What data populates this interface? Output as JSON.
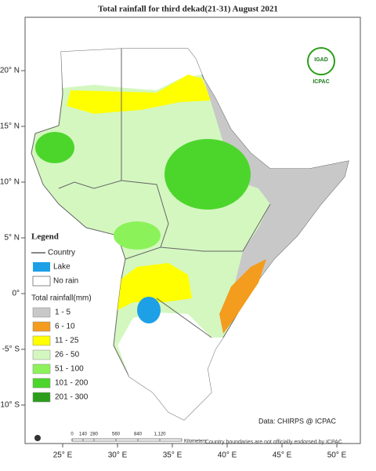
{
  "header": {
    "title": "Total rainfall for third  dekad(21-31)  August 2021"
  },
  "logo": {
    "name": "IGAD",
    "org": "ICPAC"
  },
  "longitudes": [
    "25° E",
    "30° E",
    "35° E",
    "40° E",
    "45° E",
    "50° E"
  ],
  "latitudes": [
    "20° N",
    "15° N",
    "10° N",
    "5° N",
    "0°",
    "-5° S",
    "-10° S"
  ],
  "legend": {
    "title": "Legend",
    "country": "Country",
    "lake": "Lake",
    "no_rain": "No rain",
    "rainfall_title": "Total rainfall(mm)",
    "items": [
      {
        "label": "1 - 5",
        "color": "#c8c8c8"
      },
      {
        "label": "6 - 10",
        "color": "#f39c1e"
      },
      {
        "label": "11 - 25",
        "color": "#ffff00"
      },
      {
        "label": "26 - 50",
        "color": "#d4f7c0"
      },
      {
        "label": "51 - 100",
        "color": "#8cf25a"
      },
      {
        "label": "101 - 200",
        "color": "#4cd62c"
      },
      {
        "label": "201 - 300",
        "color": "#2a9e1a"
      }
    ]
  },
  "scale": {
    "ticks": [
      "0",
      "140",
      "280",
      "560",
      "840",
      "1,120"
    ],
    "unit": "Kilometers"
  },
  "credit": "Data: CHIRPS @ ICPAC",
  "disclaimer": "Country boundaries are not officially endorsed by ICPAC"
}
